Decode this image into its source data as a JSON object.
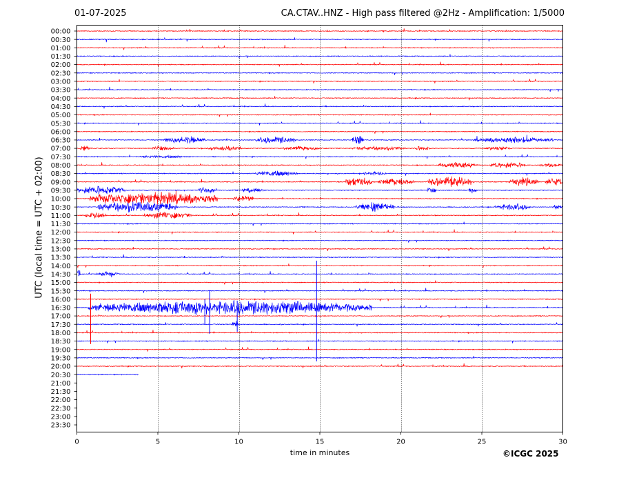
{
  "header": {
    "date": "01-07-2025",
    "title": "CA.CTAV..HNZ - High pass filtered @2Hz - Amplification: 1/5000"
  },
  "footer": {
    "copyright": "©ICGC 2025"
  },
  "colors": {
    "trace_red": "#ff0000",
    "trace_blue": "#0000ff",
    "grid": "#000000"
  },
  "chart_data": {
    "type": "line",
    "title": "CA.CTAV..HNZ - High pass filtered @2Hz - Amplification: 1/5000",
    "xlabel": "time in minutes",
    "ylabel": "UTC (local time = UTC + 02:00)",
    "xlim": [
      0,
      30
    ],
    "x_ticks": [
      0,
      5,
      10,
      15,
      20,
      25,
      30
    ],
    "vertical_gridlines_at": [
      5,
      10,
      15,
      20,
      25
    ],
    "grid": "vertical dotted",
    "y_tick_labels": [
      "00:00",
      "00:30",
      "01:00",
      "01:30",
      "02:00",
      "02:30",
      "03:00",
      "03:30",
      "04:00",
      "04:30",
      "05:00",
      "05:30",
      "06:00",
      "06:30",
      "07:00",
      "07:30",
      "08:00",
      "08:30",
      "09:00",
      "09:30",
      "10:00",
      "10:30",
      "11:00",
      "11:30",
      "12:00",
      "12:30",
      "13:00",
      "13:30",
      "14:00",
      "14:30",
      "15:00",
      "15:30",
      "16:00",
      "16:30",
      "17:00",
      "17:30",
      "18:00",
      "18:30",
      "19:00",
      "19:30",
      "20:00",
      "20:30",
      "21:00",
      "21:30",
      "22:00",
      "22:30",
      "23:00",
      "23:30"
    ],
    "trace_colors_alternate": [
      "red",
      "blue"
    ],
    "last_trace_end_minute": 3.8,
    "activity": [
      {
        "row": "06:30",
        "bursts": [
          [
            5.3,
            8.0,
            5
          ],
          [
            11.0,
            13.5,
            5
          ],
          [
            17.0,
            17.7,
            7
          ],
          [
            24.5,
            29.5,
            4
          ]
        ]
      },
      {
        "row": "07:00",
        "bursts": [
          [
            0.2,
            0.8,
            4
          ],
          [
            4.6,
            6.0,
            3
          ],
          [
            8.0,
            10.2,
            3
          ],
          [
            12.7,
            15.0,
            3
          ],
          [
            17.0,
            20.3,
            3
          ],
          [
            20.8,
            21.8,
            3
          ],
          [
            25.2,
            26.8,
            3
          ]
        ]
      },
      {
        "row": "07:30",
        "bursts": [
          [
            3.7,
            7.0,
            2
          ]
        ]
      },
      {
        "row": "08:00",
        "bursts": [
          [
            22.3,
            24.8,
            4
          ],
          [
            25.4,
            27.8,
            4
          ],
          [
            28.5,
            29.9,
            3
          ]
        ]
      },
      {
        "row": "08:30",
        "bursts": [
          [
            11.0,
            13.6,
            4
          ],
          [
            17.7,
            19.1,
            3
          ]
        ]
      },
      {
        "row": "09:00",
        "bursts": [
          [
            16.6,
            18.2,
            7
          ],
          [
            18.6,
            20.8,
            5
          ],
          [
            21.6,
            24.5,
            7
          ],
          [
            26.7,
            28.5,
            6
          ],
          [
            28.9,
            30.0,
            6
          ]
        ]
      },
      {
        "row": "09:30",
        "bursts": [
          [
            0.0,
            3.0,
            6
          ],
          [
            7.5,
            8.5,
            5
          ],
          [
            10.2,
            11.5,
            4
          ],
          [
            21.6,
            22.2,
            4
          ],
          [
            24.2,
            24.7,
            5
          ]
        ]
      },
      {
        "row": "10:00",
        "bursts": [
          [
            0.8,
            8.7,
            9
          ],
          [
            9.6,
            10.9,
            5
          ]
        ]
      },
      {
        "row": "10:30",
        "bursts": [
          [
            1.3,
            6.2,
            8
          ],
          [
            17.2,
            19.6,
            7
          ],
          [
            25.8,
            28.0,
            5
          ],
          [
            29.3,
            30.0,
            3
          ]
        ]
      },
      {
        "row": "11:00",
        "bursts": [
          [
            0.5,
            1.8,
            5
          ],
          [
            4.1,
            7.1,
            5
          ]
        ]
      },
      {
        "row": "14:30",
        "bursts": [
          [
            0.0,
            0.2,
            8
          ],
          [
            1.2,
            2.6,
            3
          ]
        ]
      },
      {
        "row": "16:30",
        "bursts": [
          [
            0.7,
            18.2,
            10
          ]
        ]
      },
      {
        "row": "17:30",
        "bursts": [
          [
            9.5,
            10.0,
            4
          ]
        ]
      }
    ],
    "spikes": [
      {
        "row": "16:00",
        "minute": 0.85,
        "up": 8,
        "down": 65
      },
      {
        "row": "16:30",
        "minute": 8.2,
        "up": 25,
        "down": 38
      },
      {
        "row": "16:30",
        "minute": 14.8,
        "up": 68,
        "down": 78
      },
      {
        "row": "16:30",
        "minute": 9.9,
        "up": 10,
        "down": 35
      },
      {
        "row": "16:30",
        "minute": 7.9,
        "up": 12,
        "down": 25
      }
    ]
  }
}
